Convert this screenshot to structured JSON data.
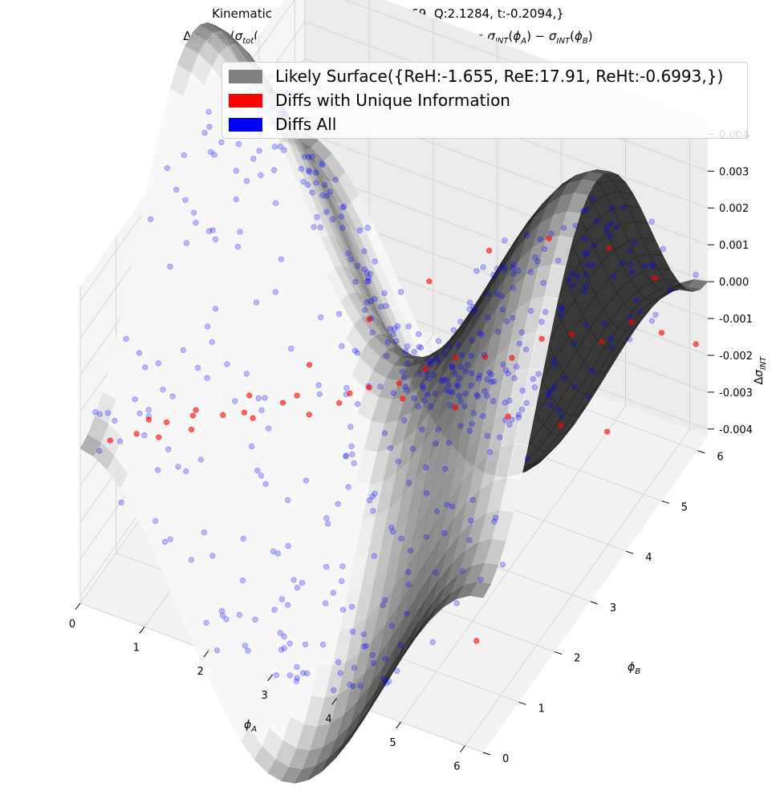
{
  "chart_data": {
    "type": "scatter",
    "title_line1": "Kinematic Bin:{E_b:10.591, x_bj:0.369, Q:2.1284, t:-0.2094,}",
    "title_line2": "Δσ_INT = (σ_tot(ϕ_A) − σ_BH(ϕ_A)) − (σ_tot(ϕ_B) − σ_BH(ϕ_B)) = σ_INT(ϕ_A) − σ_INT(ϕ_B)",
    "xlabel": "ϕ_A",
    "ylabel": "ϕ_B",
    "zlabel": "Δσ_INT",
    "xlim": [
      0,
      6.283
    ],
    "ylim": [
      0,
      6.283
    ],
    "zlim": [
      -0.0042,
      0.0044
    ],
    "x_ticks": [
      "0",
      "1",
      "2",
      "3",
      "4",
      "5",
      "6"
    ],
    "y_ticks": [
      "0",
      "1",
      "2",
      "3",
      "4",
      "5",
      "6"
    ],
    "z_ticks": [
      "0.004",
      "0.003",
      "0.002",
      "0.001",
      "0.000",
      "-0.001",
      "-0.002",
      "-0.003",
      "-0.004"
    ],
    "grid": true,
    "legend_position": "top-right",
    "colors": {
      "surface": "#808080",
      "unique": "#ff0000",
      "all": "#0000ff"
    },
    "legend": [
      {
        "label": "Likely Surface({ReH:-1.655, ReE:17.91, ReHt:-0.6993,})",
        "color": "#808080"
      },
      {
        "label": "Diffs with Unique Information",
        "color": "#ff0000"
      },
      {
        "label": "Diffs All",
        "color": "#0000ff"
      }
    ],
    "series": [
      {
        "name": "Likely Surface({ReH:-1.655, ReE:17.91, ReHt:-0.6993,})",
        "kind": "surface",
        "model": "z = 0.0035 * (cos(phi_A) - cos(phi_B))"
      },
      {
        "name": "Diffs with Unique Information",
        "kind": "scatter",
        "description_count": 42,
        "points": [
          [
            0.3,
            0.3,
            0.0
          ],
          [
            0.6,
            0.5,
            0.0001
          ],
          [
            0.9,
            0.8,
            0.0002
          ],
          [
            1.2,
            1.0,
            0.0003
          ],
          [
            1.5,
            1.3,
            0.0001
          ],
          [
            1.8,
            1.6,
            -0.0002
          ],
          [
            2.1,
            1.9,
            0.0
          ],
          [
            2.4,
            2.1,
            -0.0004
          ],
          [
            2.7,
            2.4,
            -0.0003
          ],
          [
            3.0,
            2.7,
            -0.0001
          ],
          [
            3.3,
            3.0,
            -0.0002
          ],
          [
            3.6,
            3.2,
            0.0001
          ],
          [
            3.9,
            3.5,
            0.0002
          ],
          [
            4.2,
            3.8,
            0.0
          ],
          [
            4.5,
            4.0,
            -0.0001
          ],
          [
            4.8,
            4.3,
            0.0002
          ],
          [
            5.1,
            4.6,
            0.0001
          ],
          [
            5.4,
            4.9,
            -0.0003
          ],
          [
            5.7,
            5.2,
            0.0
          ],
          [
            6.0,
            5.5,
            -0.0005
          ],
          [
            1.0,
            0.4,
            0.0004
          ],
          [
            1.4,
            0.6,
            0.0006
          ],
          [
            2.0,
            1.0,
            0.0009
          ],
          [
            2.6,
            1.4,
            0.0012
          ],
          [
            3.2,
            1.8,
            0.0011
          ],
          [
            3.8,
            2.2,
            0.0008
          ],
          [
            4.4,
            2.6,
            0.0004
          ],
          [
            5.0,
            3.0,
            0.0
          ],
          [
            5.6,
            3.4,
            -0.0004
          ],
          [
            6.1,
            3.8,
            -0.0008
          ],
          [
            0.4,
            1.2,
            -0.0006
          ],
          [
            0.8,
            1.8,
            -0.0009
          ],
          [
            1.3,
            2.4,
            -0.001
          ],
          [
            1.9,
            3.0,
            -0.0006
          ],
          [
            2.5,
            3.6,
            0.0002
          ],
          [
            3.1,
            4.2,
            0.0008
          ],
          [
            3.7,
            4.8,
            0.0012
          ],
          [
            4.3,
            5.4,
            0.0011
          ],
          [
            4.9,
            6.0,
            0.0004
          ],
          [
            5.5,
            6.2,
            -0.0003
          ],
          [
            6.2,
            6.1,
            -0.0015
          ],
          [
            5.9,
            0.5,
            -0.0021
          ]
        ]
      },
      {
        "name": "Diffs All",
        "kind": "scatter",
        "description_count": 500,
        "generator": {
          "seed": 12345,
          "count": 500,
          "noise": 0.0011
        }
      }
    ]
  }
}
